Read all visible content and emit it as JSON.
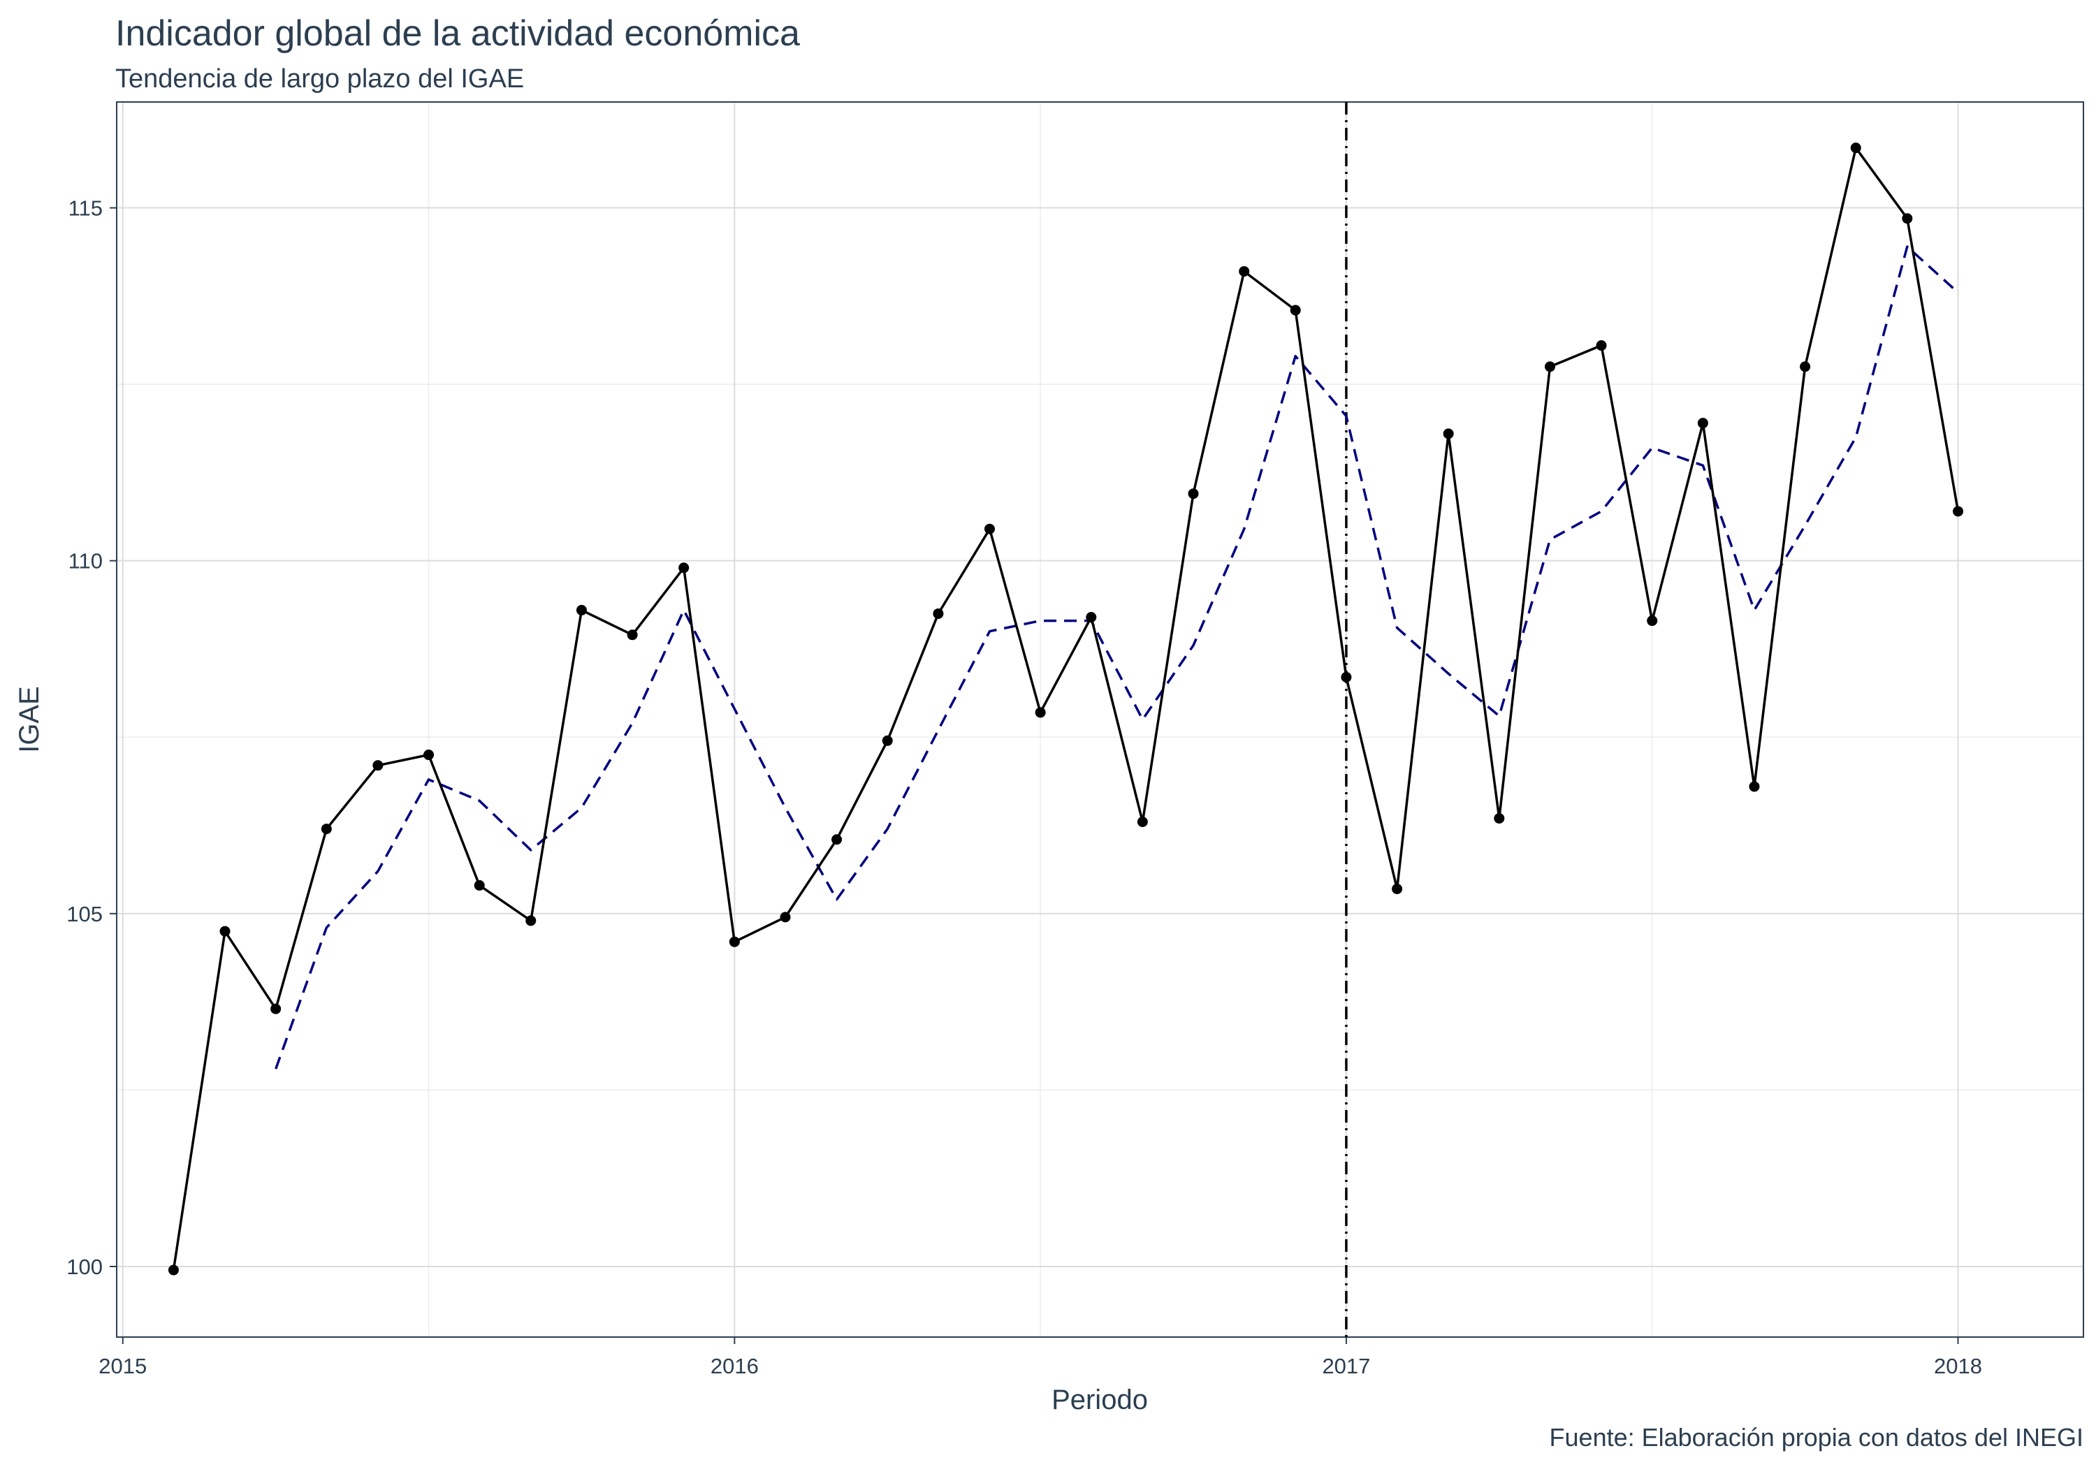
{
  "chart_data": {
    "type": "line",
    "title": "Indicador global de la actividad económica",
    "subtitle": "Tendencia de largo plazo del IGAE",
    "xlabel": "Periodo",
    "ylabel": "IGAE",
    "caption": "Fuente: Elaboración propia con datos del INEGI",
    "xlim": [
      2014.99,
      2018.205
    ],
    "ylim": [
      99.0,
      116.5
    ],
    "x_ticks": [
      {
        "value": 2015,
        "label": "2015"
      },
      {
        "value": 2016,
        "label": "2016"
      },
      {
        "value": 2017,
        "label": "2017"
      },
      {
        "value": 2018,
        "label": "2018"
      }
    ],
    "y_ticks": [
      {
        "value": 100,
        "label": "100"
      },
      {
        "value": 105,
        "label": "105"
      },
      {
        "value": 110,
        "label": "110"
      },
      {
        "value": 115,
        "label": "115"
      }
    ],
    "y_minor": [
      102.5,
      107.5,
      112.5
    ],
    "x_minor": [
      2015.5,
      2016.5,
      2017.5
    ],
    "vline": {
      "x": 2017.0,
      "style": "dotdash"
    },
    "series": [
      {
        "name": "IGAE",
        "style": "solid-with-points",
        "color": "#000000",
        "x": [
          2015.083,
          2015.167,
          2015.25,
          2015.333,
          2015.417,
          2015.5,
          2015.583,
          2015.667,
          2015.75,
          2015.833,
          2015.917,
          2016.0,
          2016.083,
          2016.167,
          2016.25,
          2016.333,
          2016.417,
          2016.5,
          2016.583,
          2016.667,
          2016.75,
          2016.833,
          2016.917,
          2017.0,
          2017.083,
          2017.167,
          2017.25,
          2017.333,
          2017.417,
          2017.5,
          2017.583,
          2017.667,
          2017.75,
          2017.833,
          2017.917,
          2018.0
        ],
        "values": [
          99.95,
          104.75,
          103.65,
          106.2,
          107.1,
          107.25,
          105.4,
          104.9,
          109.3,
          108.95,
          109.9,
          104.6,
          104.95,
          106.05,
          107.45,
          109.25,
          110.45,
          107.85,
          109.2,
          106.3,
          110.95,
          114.1,
          113.55,
          108.35,
          105.35,
          111.8,
          106.35,
          112.75,
          113.05,
          109.15,
          111.95,
          106.8,
          112.75,
          115.85,
          114.85,
          110.7
        ]
      },
      {
        "name": "Tendencia",
        "style": "dashed",
        "color": "#000080",
        "x": [
          2015.25,
          2015.333,
          2015.417,
          2015.5,
          2015.583,
          2015.667,
          2015.75,
          2015.833,
          2015.917,
          2016.0,
          2016.083,
          2016.167,
          2016.25,
          2016.333,
          2016.417,
          2016.5,
          2016.583,
          2016.667,
          2016.75,
          2016.833,
          2016.917,
          2017.0,
          2017.083,
          2017.167,
          2017.25,
          2017.333,
          2017.417,
          2017.5,
          2017.583,
          2017.667,
          2017.75,
          2017.833,
          2017.917,
          2018.0
        ],
        "values": [
          102.8,
          104.8,
          105.6,
          106.9,
          106.6,
          105.9,
          106.5,
          107.7,
          109.3,
          107.9,
          106.5,
          105.2,
          106.2,
          107.6,
          109.0,
          109.15,
          109.15,
          107.75,
          108.8,
          110.45,
          112.9,
          112.05,
          109.05,
          108.4,
          107.8,
          110.3,
          110.7,
          111.6,
          111.35,
          109.3,
          110.5,
          111.75,
          114.45,
          113.8
        ]
      }
    ]
  }
}
